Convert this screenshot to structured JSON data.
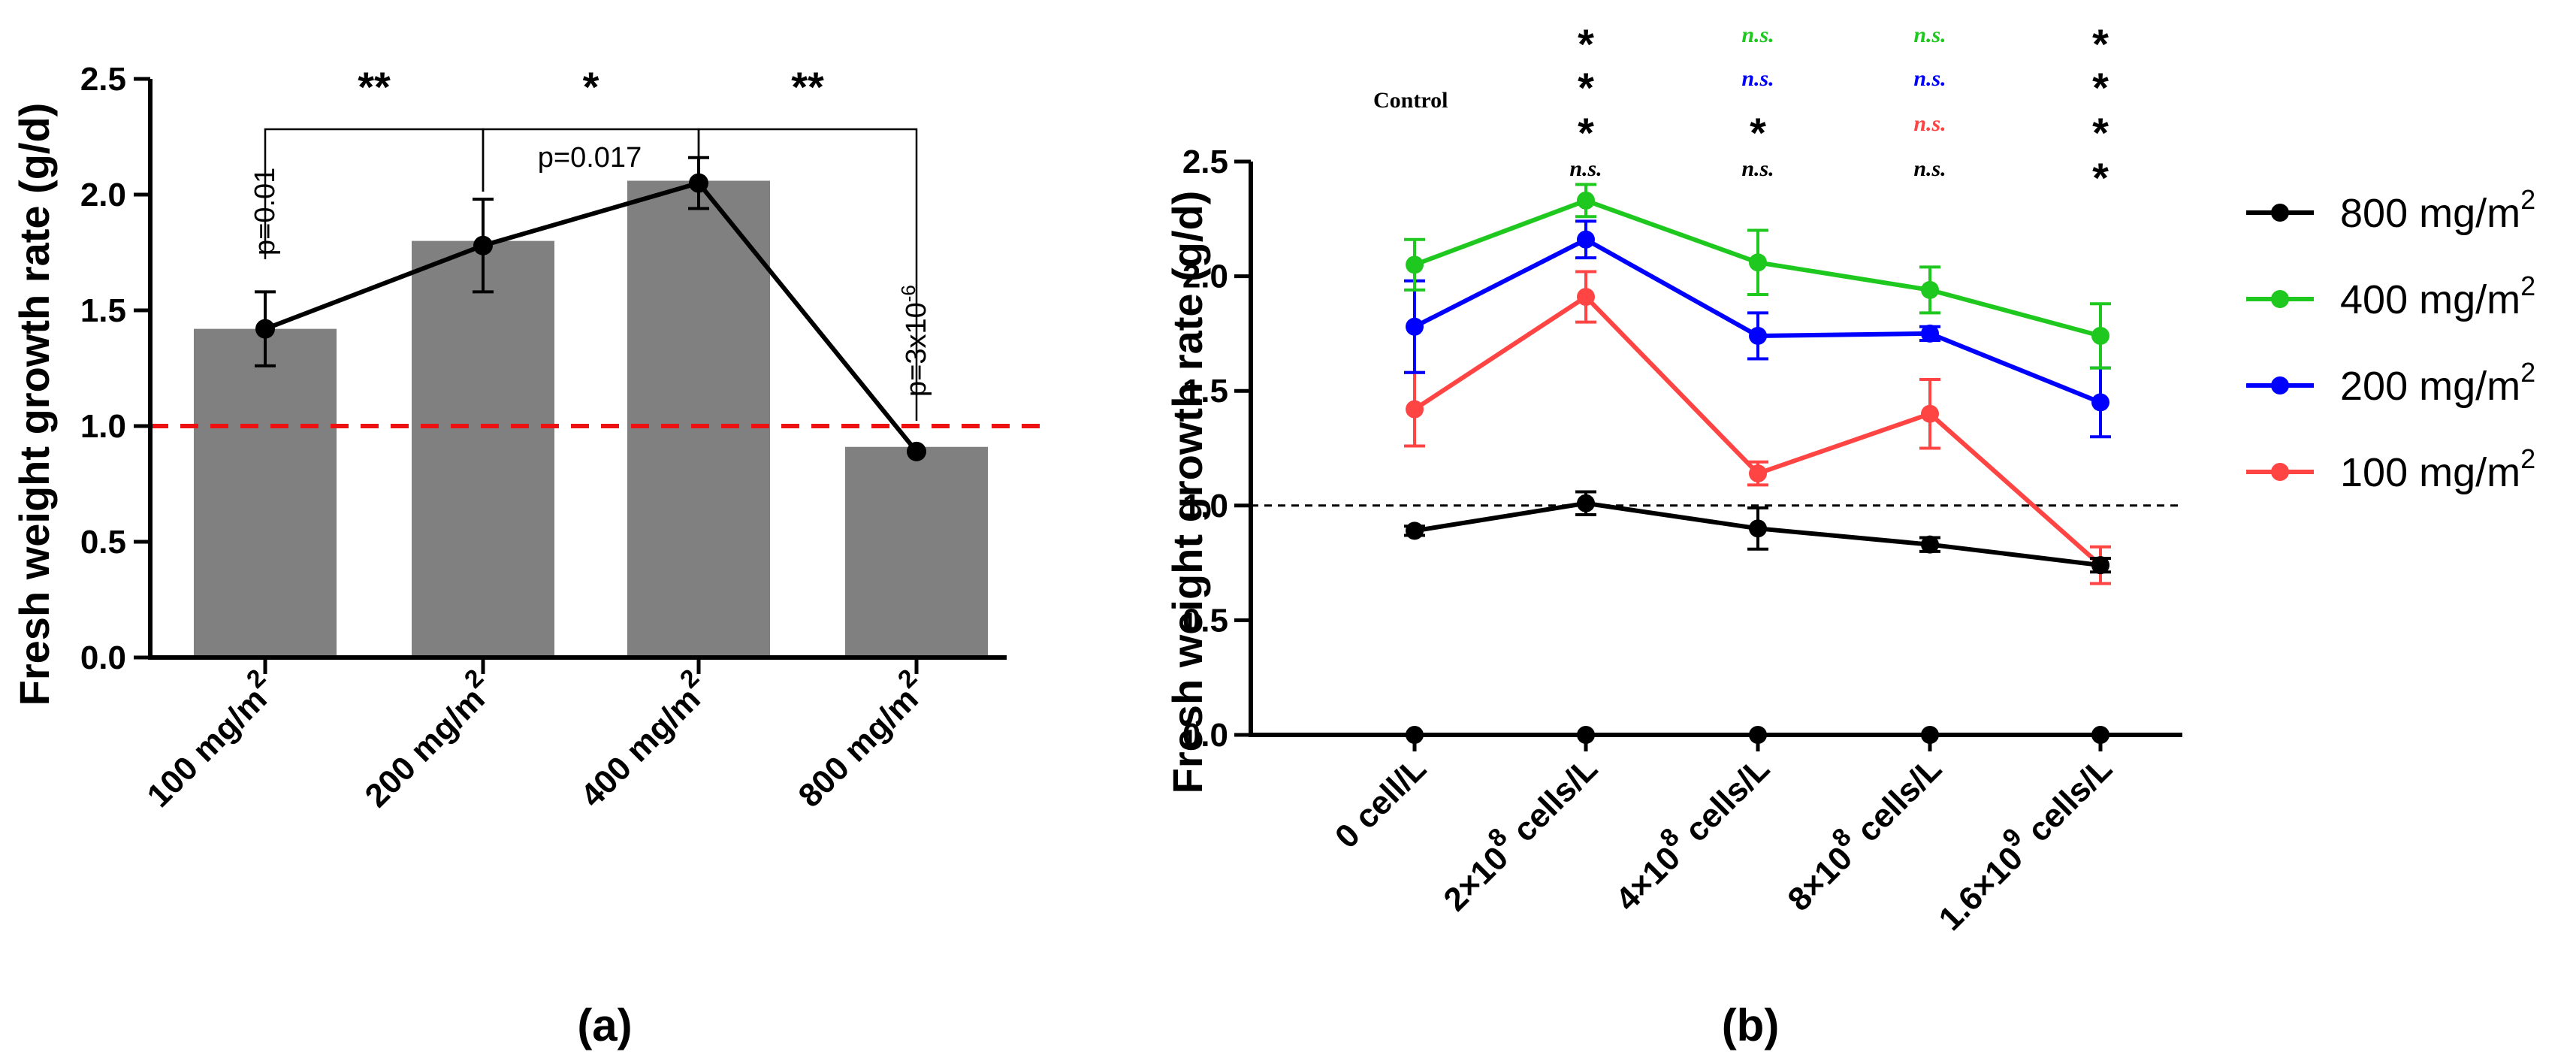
{
  "colors": {
    "bar": "#808080",
    "black": "#000000",
    "green": "#1ec81e",
    "blue": "#0000ff",
    "red": "#ff4444",
    "ref_line_a": "#ee1111",
    "ref_line_b": "#000000"
  },
  "chart_data": [
    {
      "panel_label": "(a)",
      "type": "bar",
      "ylabel": "Fresh weight growth rate (g/d)",
      "ylim": [
        0,
        2.5
      ],
      "yticks": [
        "0.0",
        "0.5",
        "1.0",
        "1.5",
        "2.0",
        "2.5"
      ],
      "ytick_values": [
        0,
        0.5,
        1.0,
        1.5,
        2.0,
        2.5
      ],
      "categories": [
        {
          "base": "100 mg/m",
          "sup": "2"
        },
        {
          "base": "200 mg/m",
          "sup": "2"
        },
        {
          "base": "400 mg/m",
          "sup": "2"
        },
        {
          "base": "800 mg/m",
          "sup": "2"
        }
      ],
      "bar_values": [
        1.42,
        1.8,
        2.06,
        0.91
      ],
      "line_values": [
        1.42,
        1.78,
        2.05,
        0.89
      ],
      "errors": [
        0.16,
        0.2,
        0.11,
        0.0
      ],
      "reference_line": 1.0,
      "p_value_labels": [
        {
          "index": 0,
          "text": "p=0.01",
          "sup": ""
        },
        {
          "index": 3,
          "text": "p=3x10",
          "sup": "-6"
        }
      ],
      "brackets": [
        {
          "from": 0,
          "to": 1,
          "label": "**"
        },
        {
          "from": 1,
          "to": 2,
          "label": "*"
        },
        {
          "from": 2,
          "to": 3,
          "label": "**"
        }
      ],
      "p_between": "p=0.017"
    },
    {
      "panel_label": "(b)",
      "type": "line",
      "ylabel": "Fresh weight growth rate (g/d)",
      "ylim": [
        0,
        2.5
      ],
      "yticks": [
        "0.0",
        "0.5",
        "1.0",
        "1.5",
        "2.0",
        "2.5"
      ],
      "ytick_values": [
        0,
        0.5,
        1.0,
        1.5,
        2.0,
        2.5
      ],
      "categories": [
        {
          "pre": "0 cell/L",
          "sup": "",
          "post": ""
        },
        {
          "pre": "2×10",
          "sup": "8",
          "post": " cells/L"
        },
        {
          "pre": "4×10",
          "sup": "8",
          "post": " cells/L"
        },
        {
          "pre": "8×10",
          "sup": "8",
          "post": " cells/L"
        },
        {
          "pre": "1.6×10",
          "sup": "9",
          "post": " cells/L"
        }
      ],
      "reference_line": 1.0,
      "zero_markers": [
        0,
        0,
        0,
        0,
        0
      ],
      "series": [
        {
          "name": "800 mg/m",
          "sup": "2",
          "color": "#000000",
          "values": [
            0.89,
            1.01,
            0.9,
            0.83,
            0.74
          ],
          "errors": [
            0.02,
            0.05,
            0.09,
            0.03,
            0.03
          ]
        },
        {
          "name": "400 mg/m",
          "sup": "2",
          "color": "#1ec81e",
          "values": [
            2.05,
            2.33,
            2.06,
            1.94,
            1.74
          ],
          "errors": [
            0.11,
            0.07,
            0.14,
            0.1,
            0.14
          ]
        },
        {
          "name": "200 mg/m",
          "sup": "2",
          "color": "#0000ff",
          "values": [
            1.78,
            2.16,
            1.74,
            1.75,
            1.45
          ],
          "errors": [
            0.2,
            0.08,
            0.1,
            0.03,
            0.15
          ]
        },
        {
          "name": "100 mg/m",
          "sup": "2",
          "color": "#ff4444",
          "values": [
            1.42,
            1.91,
            1.14,
            1.4,
            0.74
          ],
          "errors": [
            0.16,
            0.11,
            0.05,
            0.15,
            0.08
          ]
        }
      ],
      "control_label": "Control",
      "significance_rows": [
        {
          "color": "#1ec81e",
          "marks": [
            "*",
            "n.s.",
            "n.s.",
            "*"
          ]
        },
        {
          "color": "#0000ff",
          "marks": [
            "*",
            "n.s.",
            "n.s.",
            "*"
          ]
        },
        {
          "color": "#ff4444",
          "marks": [
            "*",
            "*",
            "n.s.",
            "*"
          ]
        },
        {
          "color": "#000000",
          "marks": [
            "n.s.",
            "n.s.",
            "n.s.",
            "*"
          ]
        }
      ]
    }
  ]
}
